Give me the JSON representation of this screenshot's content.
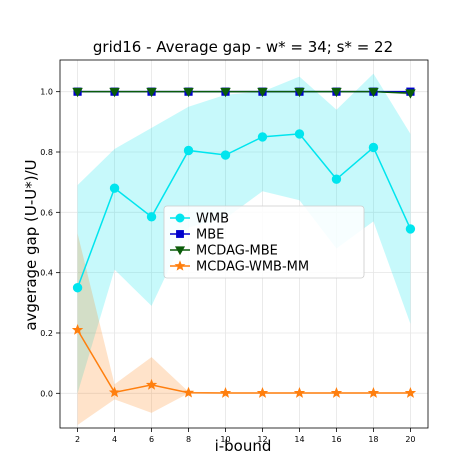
{
  "chart_data": {
    "type": "line",
    "title": "grid16 - Average gap - w* = 34; s* = 22",
    "xlabel": "i-bound",
    "ylabel": "avgerage gap (U-U*)/U",
    "x": [
      2,
      4,
      6,
      8,
      10,
      12,
      14,
      16,
      18,
      20
    ],
    "x_tick_labels": [
      "2",
      "4",
      "6",
      "8",
      "10",
      "12",
      "14",
      "16",
      "18",
      "20"
    ],
    "y_tick_labels": [
      "0.0",
      "0.2",
      "0.4",
      "0.6",
      "0.8",
      "1.0"
    ],
    "xlim": [
      1.05,
      20.95
    ],
    "ylim": [
      -0.115,
      1.105
    ],
    "y_ticks": [
      0.0,
      0.2,
      0.4,
      0.6,
      0.8,
      1.0
    ],
    "grid": true,
    "legend_position": "center-right",
    "series": [
      {
        "name": "WMB",
        "color": "#00e5ee",
        "marker": "circle",
        "values": [
          0.35,
          0.68,
          0.585,
          0.805,
          0.79,
          0.85,
          0.86,
          0.71,
          0.815,
          0.545
        ],
        "band_upper": [
          0.69,
          0.81,
          0.88,
          0.95,
          0.99,
          1.0,
          1.05,
          0.94,
          1.06,
          0.86
        ],
        "band_lower": [
          0.0,
          0.41,
          0.29,
          0.55,
          0.58,
          0.67,
          0.64,
          0.48,
          0.57,
          0.23
        ]
      },
      {
        "name": "MBE",
        "color": "#0000cc",
        "marker": "square",
        "values": [
          1.0,
          1.0,
          1.0,
          1.0,
          1.0,
          1.0,
          1.0,
          1.0,
          1.0,
          1.0
        ],
        "band_upper": [
          1.0,
          1.0,
          1.0,
          1.0,
          1.0,
          1.0,
          1.0,
          1.0,
          1.0,
          1.0
        ],
        "band_lower": [
          1.0,
          1.0,
          1.0,
          1.0,
          1.0,
          1.0,
          1.0,
          1.0,
          1.0,
          1.0
        ]
      },
      {
        "name": "MCDAG-MBE",
        "color": "#0a5c0a",
        "marker": "triangle-down",
        "values": [
          1.0,
          1.0,
          1.0,
          1.0,
          1.0,
          1.0,
          1.0,
          1.0,
          1.0,
          0.995
        ],
        "band_upper": [
          1.0,
          1.0,
          1.0,
          1.0,
          1.0,
          1.0,
          1.0,
          1.0,
          1.0,
          1.0
        ],
        "band_lower": [
          1.0,
          1.0,
          1.0,
          1.0,
          1.0,
          1.0,
          1.0,
          1.0,
          1.0,
          0.99
        ]
      },
      {
        "name": "MCDAG-WMB-MM",
        "color": "#ff7f0e",
        "marker": "star",
        "values": [
          0.21,
          0.003,
          0.028,
          0.002,
          0.001,
          0.001,
          0.001,
          0.001,
          0.001,
          0.001
        ],
        "band_upper": [
          0.53,
          0.03,
          0.12,
          0.005,
          0.003,
          0.003,
          0.003,
          0.003,
          0.003,
          0.003
        ],
        "band_lower": [
          -0.105,
          -0.02,
          -0.065,
          0.0,
          0.0,
          0.0,
          0.0,
          0.0,
          0.0,
          0.0
        ]
      }
    ]
  }
}
